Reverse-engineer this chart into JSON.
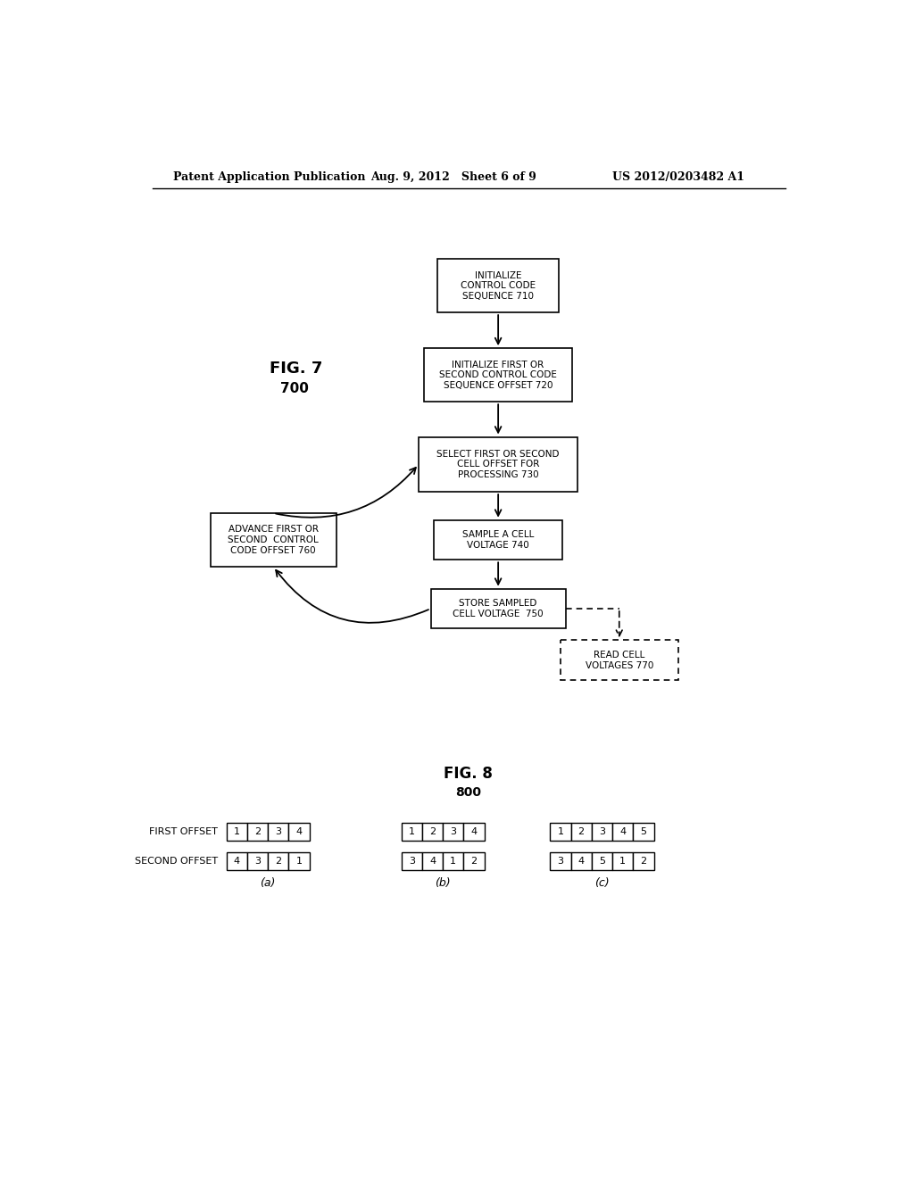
{
  "header_left": "Patent Application Publication",
  "header_mid": "Aug. 9, 2012   Sheet 6 of 9",
  "header_right": "US 2012/0203482 A1",
  "fig7_label": "FIG. 7",
  "fig7_num": "700",
  "fig8_label": "FIG. 8",
  "fig8_num": "800",
  "bg_color": "#ffffff",
  "text_color": "#000000",
  "box_710_text": "INITIALIZE\nCONTROL CODE\nSEQUENCE 710",
  "box_720_text": "INITIALIZE FIRST OR\nSECOND CONTROL CODE\nSEQUENCE OFFSET 720",
  "box_730_text": "SELECT FIRST OR SECOND\nCELL OFFSET FOR\nPROCESSING 730",
  "box_740_text": "SAMPLE A CELL\nVOLTAGE 740",
  "box_750_text": "STORE SAMPLED\nCELL VOLTAGE  750",
  "box_760_text": "ADVANCE FIRST OR\nSECOND  CONTROL\nCODE OFFSET 760",
  "box_770_text": "READ CELL\nVOLTAGES 770",
  "fig8_first_offset_label": "FIRST OFFSET",
  "fig8_second_offset_label": "SECOND OFFSET",
  "fig8_a_first": [
    1,
    2,
    3,
    4
  ],
  "fig8_a_second": [
    4,
    3,
    2,
    1
  ],
  "fig8_b_first": [
    1,
    2,
    3,
    4
  ],
  "fig8_b_second": [
    3,
    4,
    1,
    2
  ],
  "fig8_c_first": [
    1,
    2,
    3,
    4,
    5
  ],
  "fig8_c_second": [
    3,
    4,
    5,
    1,
    2
  ],
  "fig8_sublabels": [
    "(a)",
    "(b)",
    "(c)"
  ]
}
